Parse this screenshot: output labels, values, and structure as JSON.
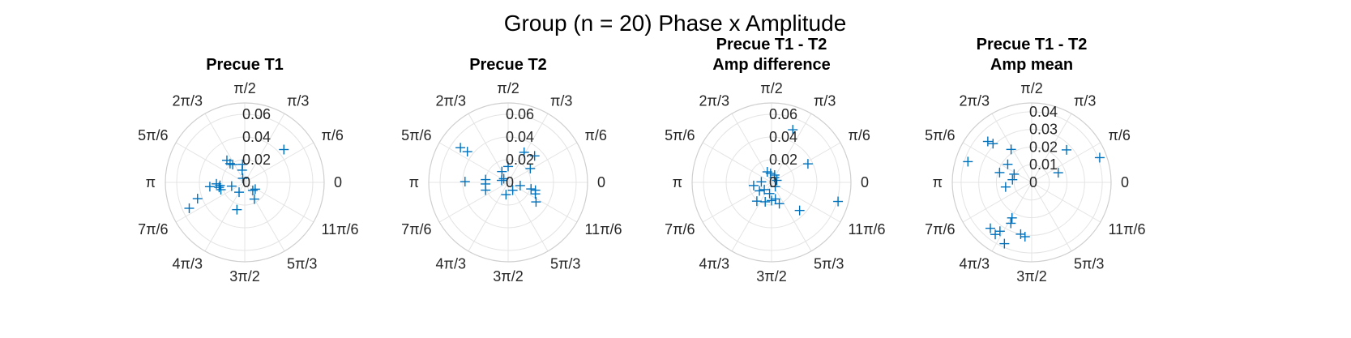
{
  "figure": {
    "suptitle": "Group (n = 20) Phase x Amplitude"
  },
  "chart_data": [
    {
      "type": "scatter",
      "title": [
        "Precue T1"
      ],
      "rlim": [
        0,
        0.07
      ],
      "rticks": [
        0,
        0.02,
        0.04,
        0.06
      ],
      "rtick_labels": [
        "0",
        "0.02",
        "0.04",
        "0.06"
      ],
      "theta_tick_labels": [
        "0",
        "π/6",
        "π/3",
        "π/2",
        "2π/3",
        "5π/6",
        "π",
        "7π/6",
        "4π/3",
        "3π/2",
        "5π/3",
        "11π/6"
      ],
      "points": [
        {
          "theta_deg": 205,
          "r": 0.054
        },
        {
          "theta_deg": 199,
          "r": 0.044
        },
        {
          "theta_deg": 183,
          "r": 0.025
        },
        {
          "theta_deg": 187,
          "r": 0.031
        },
        {
          "theta_deg": 187,
          "r": 0.022
        },
        {
          "theta_deg": 191,
          "r": 0.023
        },
        {
          "theta_deg": 197,
          "r": 0.022
        },
        {
          "theta_deg": 129,
          "r": 0.025
        },
        {
          "theta_deg": 128,
          "r": 0.021
        },
        {
          "theta_deg": 124,
          "r": 0.019
        },
        {
          "theta_deg": 97,
          "r": 0.016
        },
        {
          "theta_deg": 102,
          "r": 0.011
        },
        {
          "theta_deg": 116,
          "r": 0.004
        },
        {
          "theta_deg": 40,
          "r": 0.045
        },
        {
          "theta_deg": 315,
          "r": 0.01
        },
        {
          "theta_deg": 327,
          "r": 0.011
        },
        {
          "theta_deg": 300,
          "r": 0.017
        },
        {
          "theta_deg": 254,
          "r": 0.025
        },
        {
          "theta_deg": 196,
          "r": 0.012
        },
        {
          "theta_deg": 240,
          "r": 0.01
        }
      ]
    },
    {
      "type": "scatter",
      "title": [
        "Precue T2"
      ],
      "rlim": [
        0,
        0.07
      ],
      "rticks": [
        0,
        0.02,
        0.04,
        0.06
      ],
      "rtick_labels": [
        "0",
        "0.02",
        "0.04",
        "0.06"
      ],
      "theta_tick_labels": [
        "0",
        "π/6",
        "π/3",
        "π/2",
        "2π/3",
        "5π/6",
        "π",
        "7π/6",
        "4π/3",
        "3π/2",
        "5π/3",
        "11π/6"
      ],
      "points": [
        {
          "theta_deg": 144,
          "r": 0.052
        },
        {
          "theta_deg": 143,
          "r": 0.045
        },
        {
          "theta_deg": 179,
          "r": 0.038
        },
        {
          "theta_deg": 199,
          "r": 0.021
        },
        {
          "theta_deg": 184,
          "r": 0.02
        },
        {
          "theta_deg": 173,
          "r": 0.02
        },
        {
          "theta_deg": 163,
          "r": 0.006
        },
        {
          "theta_deg": 120,
          "r": 0.011
        },
        {
          "theta_deg": 62,
          "r": 0.03
        },
        {
          "theta_deg": 45,
          "r": 0.033
        },
        {
          "theta_deg": 32,
          "r": 0.023
        },
        {
          "theta_deg": 345,
          "r": 0.011
        },
        {
          "theta_deg": 344,
          "r": 0.021
        },
        {
          "theta_deg": 337,
          "r": 0.026
        },
        {
          "theta_deg": 344,
          "r": 0.025
        },
        {
          "theta_deg": 325,
          "r": 0.03
        },
        {
          "theta_deg": 260,
          "r": 0.011
        },
        {
          "theta_deg": 300,
          "r": 0.008
        },
        {
          "theta_deg": 90,
          "r": 0.014
        },
        {
          "theta_deg": 140,
          "r": 0.005
        }
      ]
    },
    {
      "type": "scatter",
      "title": [
        "Precue T1 - T2",
        "Amp difference"
      ],
      "rlim": [
        0,
        0.07
      ],
      "rticks": [
        0,
        0.02,
        0.04,
        0.06
      ],
      "rtick_labels": [
        "0",
        "0.02",
        "0.04",
        "0.06"
      ],
      "theta_tick_labels": [
        "0",
        "π/6",
        "π/3",
        "π/2",
        "2π/3",
        "5π/6",
        "π",
        "7π/6",
        "4π/3",
        "3π/2",
        "5π/3",
        "11π/6"
      ],
      "points": [
        {
          "theta_deg": 68,
          "r": 0.05
        },
        {
          "theta_deg": 27,
          "r": 0.036
        },
        {
          "theta_deg": 344,
          "r": 0.061
        },
        {
          "theta_deg": 315,
          "r": 0.035
        },
        {
          "theta_deg": 290,
          "r": 0.02
        },
        {
          "theta_deg": 283,
          "r": 0.015
        },
        {
          "theta_deg": 270,
          "r": 0.016
        },
        {
          "theta_deg": 252,
          "r": 0.018
        },
        {
          "theta_deg": 232,
          "r": 0.021
        },
        {
          "theta_deg": 215,
          "r": 0.013
        },
        {
          "theta_deg": 190,
          "r": 0.016
        },
        {
          "theta_deg": 177,
          "r": 0.009
        },
        {
          "theta_deg": 112,
          "r": 0.01
        },
        {
          "theta_deg": 96,
          "r": 0.008
        },
        {
          "theta_deg": 67,
          "r": 0.007
        },
        {
          "theta_deg": 59,
          "r": 0.005
        },
        {
          "theta_deg": 21,
          "r": 0.005
        },
        {
          "theta_deg": 311,
          "r": 0.005
        },
        {
          "theta_deg": 260,
          "r": 0.01
        },
        {
          "theta_deg": 225,
          "r": 0.009
        }
      ]
    },
    {
      "type": "scatter",
      "title": [
        "Precue T1 - T2",
        "Amp mean"
      ],
      "rlim": [
        0,
        0.045
      ],
      "rticks": [
        0,
        0.01,
        0.02,
        0.03,
        0.04
      ],
      "rtick_labels": [
        "0",
        "0.01",
        "0.02",
        "0.03",
        "0.04"
      ],
      "theta_tick_labels": [
        "0",
        "π/6",
        "π/3",
        "π/2",
        "2π/3",
        "5π/6",
        "π",
        "7π/6",
        "4π/3",
        "3π/2",
        "5π/3",
        "11π/6"
      ],
      "points": [
        {
          "theta_deg": 162,
          "r": 0.038
        },
        {
          "theta_deg": 137,
          "r": 0.034
        },
        {
          "theta_deg": 135,
          "r": 0.031
        },
        {
          "theta_deg": 122,
          "r": 0.022
        },
        {
          "theta_deg": 143,
          "r": 0.017
        },
        {
          "theta_deg": 163,
          "r": 0.019
        },
        {
          "theta_deg": 190,
          "r": 0.015
        },
        {
          "theta_deg": 172,
          "r": 0.011
        },
        {
          "theta_deg": 155,
          "r": 0.011
        },
        {
          "theta_deg": 228,
          "r": 0.035
        },
        {
          "theta_deg": 235,
          "r": 0.036
        },
        {
          "theta_deg": 237,
          "r": 0.033
        },
        {
          "theta_deg": 243,
          "r": 0.026
        },
        {
          "theta_deg": 246,
          "r": 0.038
        },
        {
          "theta_deg": 241,
          "r": 0.023
        },
        {
          "theta_deg": 258,
          "r": 0.03
        },
        {
          "theta_deg": 263,
          "r": 0.031
        },
        {
          "theta_deg": 20,
          "r": 0.041
        },
        {
          "theta_deg": 43,
          "r": 0.027
        },
        {
          "theta_deg": 20,
          "r": 0.016
        }
      ]
    }
  ]
}
